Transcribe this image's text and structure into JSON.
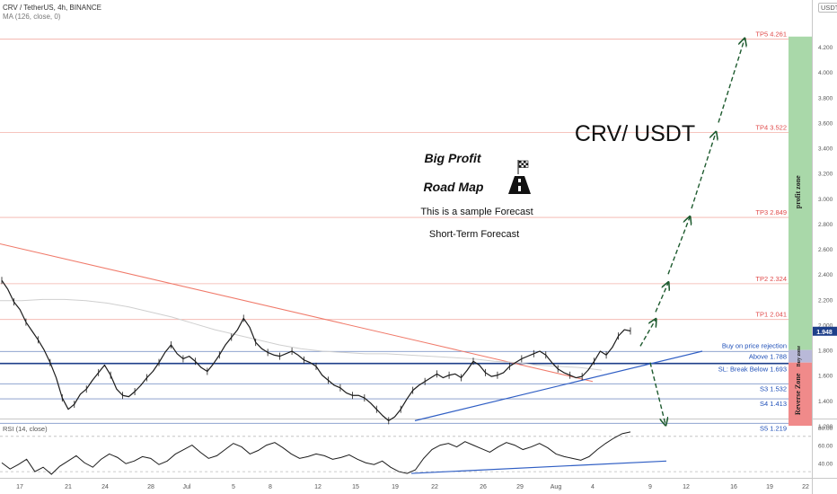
{
  "header": {
    "symbol_line": "CRV / TetherUS, 4h, BINANCE",
    "ma_line": "MA (126, close, 0)",
    "unit": "USDT"
  },
  "annotations": {
    "title": "CRV/ USDT",
    "big_profit": "Big Profit",
    "road_map": "Road Map",
    "sample": "This is a sample Forecast",
    "short_term": "Short-Term Forecast",
    "profit_zone": "profit zone",
    "buy_zone": "Buy zone",
    "reverse_zone": "Reverse Zone"
  },
  "chart_data": [
    {
      "type": "line",
      "title": "CRV / TetherUS, 4h, BINANCE",
      "ylim": [
        1.19,
        4.3
      ],
      "y_ticks": [
        1.2,
        1.4,
        1.6,
        1.8,
        2.0,
        2.2,
        2.4,
        2.6,
        2.8,
        3.0,
        3.2,
        3.4,
        3.6,
        3.8,
        4.0,
        4.2
      ],
      "x_tick_labels": [
        "17",
        "21",
        "24",
        "28",
        "Jul",
        "5",
        "8",
        "12",
        "15",
        "19",
        "22",
        "26",
        "29",
        "Aug",
        "4",
        "9",
        "12",
        "16",
        "19",
        "22"
      ],
      "last_price": "1.948",
      "levels": [
        {
          "label": "TP5 4.261",
          "value": 4.261,
          "color": "#f06a6a"
        },
        {
          "label": "TP4 3.522",
          "value": 3.522,
          "color": "#f06a6a"
        },
        {
          "label": "TP3 2.849",
          "value": 2.849,
          "color": "#f06a6a"
        },
        {
          "label": "TP2 2.324",
          "value": 2.324,
          "color": "#f06a6a"
        },
        {
          "label": "TP1 2.041",
          "value": 2.041,
          "color": "#f06a6a"
        },
        {
          "label": "Buy on price rejection",
          "value": 1.788,
          "color": "#1e4fb8"
        },
        {
          "label": "Above 1.788",
          "value": 1.788,
          "color": "#1e4fb8"
        },
        {
          "label": "SL: Break Below 1.693",
          "value": 1.693,
          "color": "#1e4fb8"
        },
        {
          "label": "S3 1.532",
          "value": 1.532,
          "color": "#1e4fb8"
        },
        {
          "label": "S4 1.413",
          "value": 1.413,
          "color": "#1e4fb8"
        },
        {
          "label": "S5 1.219",
          "value": 1.219,
          "color": "#1e4fb8"
        }
      ],
      "price_path": [
        2.35,
        2.28,
        2.18,
        2.12,
        2.02,
        1.95,
        1.88,
        1.8,
        1.7,
        1.58,
        1.42,
        1.33,
        1.37,
        1.45,
        1.49,
        1.56,
        1.62,
        1.68,
        1.6,
        1.49,
        1.44,
        1.43,
        1.47,
        1.52,
        1.58,
        1.63,
        1.7,
        1.78,
        1.84,
        1.77,
        1.73,
        1.75,
        1.71,
        1.66,
        1.63,
        1.69,
        1.76,
        1.84,
        1.9,
        1.96,
        2.05,
        1.98,
        1.86,
        1.81,
        1.78,
        1.76,
        1.75,
        1.77,
        1.79,
        1.76,
        1.72,
        1.7,
        1.67,
        1.6,
        1.56,
        1.52,
        1.5,
        1.46,
        1.44,
        1.44,
        1.42,
        1.38,
        1.33,
        1.28,
        1.24,
        1.27,
        1.33,
        1.41,
        1.48,
        1.52,
        1.55,
        1.58,
        1.61,
        1.58,
        1.6,
        1.61,
        1.58,
        1.64,
        1.71,
        1.68,
        1.62,
        1.59,
        1.6,
        1.62,
        1.67,
        1.7,
        1.73,
        1.75,
        1.77,
        1.79,
        1.76,
        1.7,
        1.65,
        1.62,
        1.6,
        1.58,
        1.59,
        1.64,
        1.71,
        1.79,
        1.76,
        1.82,
        1.91,
        1.96,
        1.95
      ],
      "ma_126": [
        2.19,
        2.19,
        2.2,
        2.2,
        2.19,
        2.17,
        2.14,
        2.1,
        2.06,
        2.01,
        1.96,
        1.92,
        1.88,
        1.84,
        1.81,
        1.79,
        1.78,
        1.77,
        1.77,
        1.76,
        1.75,
        1.74,
        1.73,
        1.71,
        1.7,
        1.68,
        1.67,
        1.66,
        1.64
      ]
    },
    {
      "type": "line",
      "title": "RSI (14, close)",
      "ylim": [
        25,
        82
      ],
      "y_ticks": [
        40.0,
        60.0,
        80.0
      ],
      "rsi": [
        40,
        33,
        38,
        44,
        30,
        35,
        27,
        36,
        42,
        48,
        40,
        35,
        44,
        50,
        46,
        39,
        42,
        47,
        45,
        38,
        42,
        50,
        55,
        60,
        52,
        45,
        48,
        55,
        62,
        58,
        50,
        54,
        60,
        63,
        57,
        50,
        45,
        47,
        50,
        48,
        44,
        46,
        49,
        44,
        40,
        38,
        42,
        35,
        30,
        28,
        32,
        45,
        55,
        60,
        62,
        58,
        64,
        60,
        56,
        52,
        58,
        63,
        60,
        55,
        58,
        62,
        57,
        50,
        47,
        45,
        43,
        47,
        55,
        62,
        68,
        73,
        75
      ]
    }
  ]
}
